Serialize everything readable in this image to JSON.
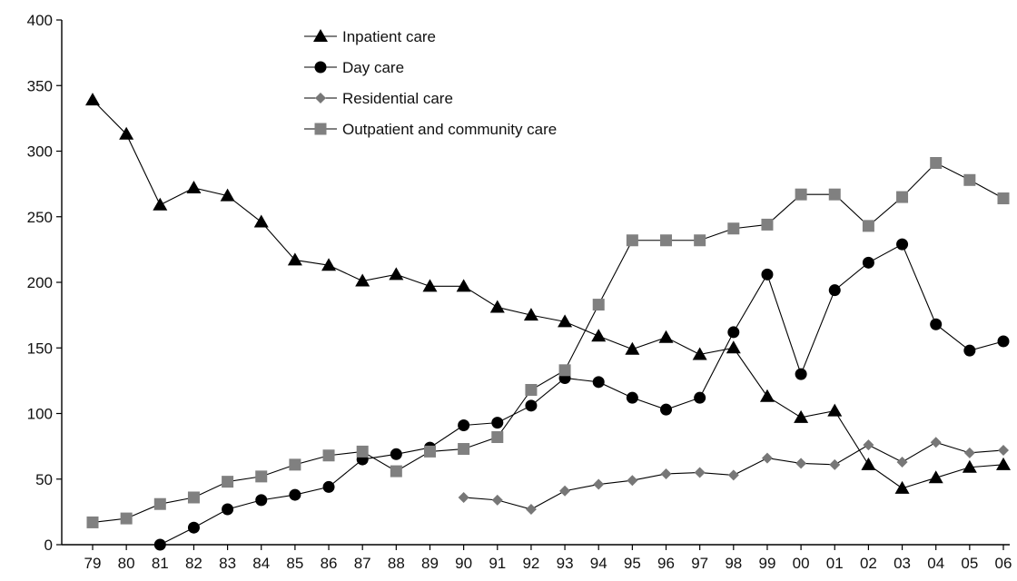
{
  "chart_data": {
    "type": "line",
    "title": "",
    "xlabel": "",
    "ylabel": "",
    "ylim": [
      0,
      400
    ],
    "yticks": [
      0,
      50,
      100,
      150,
      200,
      250,
      300,
      350,
      400
    ],
    "categories": [
      "79",
      "80",
      "81",
      "82",
      "83",
      "84",
      "85",
      "86",
      "87",
      "88",
      "89",
      "90",
      "91",
      "92",
      "93",
      "94",
      "95",
      "96",
      "97",
      "98",
      "99",
      "00",
      "01",
      "02",
      "03",
      "04",
      "05",
      "06"
    ],
    "grid": false,
    "legend_position": "top-center",
    "series": [
      {
        "name": "Inpatient care",
        "marker": "triangle",
        "color": "#000000",
        "values": [
          339,
          313,
          259,
          272,
          266,
          246,
          217,
          213,
          201,
          206,
          197,
          197,
          181,
          175,
          170,
          159,
          149,
          158,
          145,
          150,
          113,
          97,
          102,
          61,
          43,
          51,
          59,
          61
        ]
      },
      {
        "name": "Day care",
        "marker": "circle",
        "color": "#000000",
        "values": [
          null,
          null,
          0,
          13,
          27,
          34,
          38,
          44,
          65,
          69,
          74,
          91,
          93,
          106,
          127,
          124,
          112,
          103,
          112,
          162,
          206,
          130,
          194,
          215,
          229,
          168,
          148,
          155
        ]
      },
      {
        "name": "Residential care",
        "marker": "diamond",
        "color": "#777777",
        "values": [
          null,
          null,
          null,
          null,
          null,
          null,
          null,
          null,
          null,
          null,
          null,
          36,
          34,
          27,
          41,
          46,
          49,
          54,
          55,
          53,
          66,
          62,
          61,
          76,
          63,
          78,
          70,
          72
        ]
      },
      {
        "name": "Outpatient and community care",
        "marker": "square",
        "color": "#808080",
        "values": [
          17,
          20,
          31,
          36,
          48,
          52,
          61,
          68,
          71,
          56,
          71,
          73,
          82,
          118,
          133,
          183,
          232,
          232,
          232,
          241,
          244,
          267,
          267,
          243,
          265,
          291,
          278,
          264
        ]
      }
    ]
  }
}
